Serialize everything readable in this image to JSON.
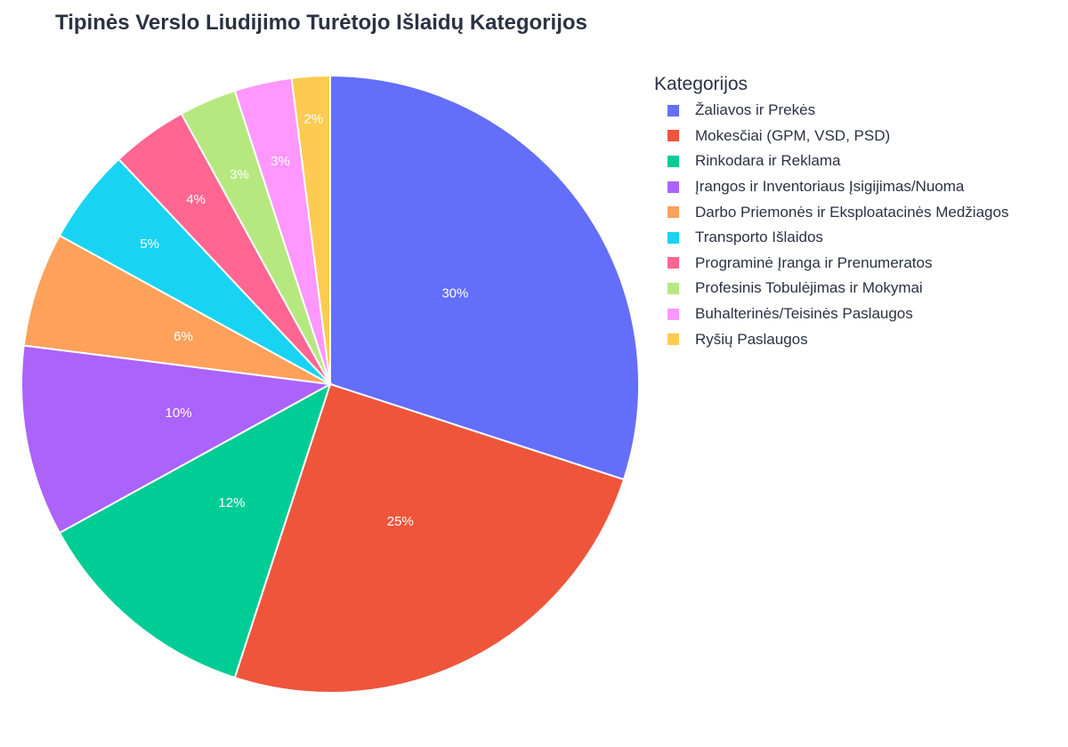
{
  "chart_data": {
    "type": "pie",
    "title": "Tipinės Verslo Liudijimo Turėtojo Išlaidų Kategorijos",
    "legend_title": "Kategorijos",
    "legend_position": "right",
    "slices": [
      {
        "label": "Žaliavos ir Prekės",
        "value": 30,
        "text": "30%",
        "color": "#636efa"
      },
      {
        "label": "Mokesčiai (GPM, VSD, PSD)",
        "value": 25,
        "text": "25%",
        "color": "#ef553b"
      },
      {
        "label": "Rinkodara ir Reklama",
        "value": 12,
        "text": "12%",
        "color": "#00cc96"
      },
      {
        "label": "Įrangos ir Inventoriaus Įsigijimas/Nuoma",
        "value": 10,
        "text": "10%",
        "color": "#ab63fa"
      },
      {
        "label": "Darbo Priemonės ir Eksploatacinės Medžiagos",
        "value": 6,
        "text": "6%",
        "color": "#ffa15a"
      },
      {
        "label": "Transporto Išlaidos",
        "value": 5,
        "text": "5%",
        "color": "#19d3f3"
      },
      {
        "label": "Programinė Įranga ir Prenumeratos",
        "value": 4,
        "text": "4%",
        "color": "#ff6692"
      },
      {
        "label": "Profesinis Tobulėjimas ir Mokymai",
        "value": 3,
        "text": "3%",
        "color": "#b6e880"
      },
      {
        "label": "Buhalterinės/Teisinės Paslaugos",
        "value": 3,
        "text": "3%",
        "color": "#ff97ff"
      },
      {
        "label": "Ryšių Paslaugos",
        "value": 2,
        "text": "2%",
        "color": "#fecb52"
      }
    ]
  }
}
